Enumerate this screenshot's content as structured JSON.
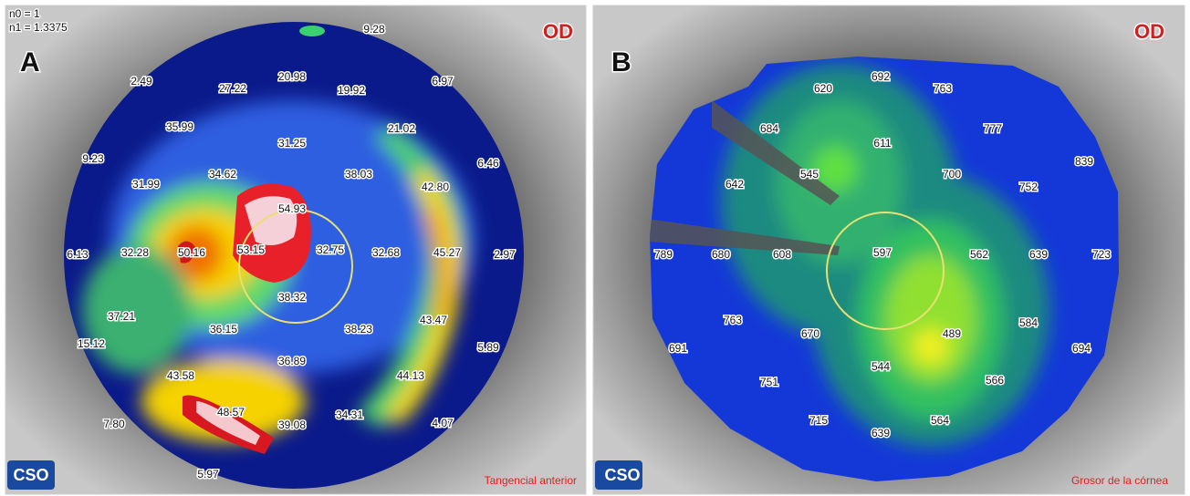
{
  "panels": [
    {
      "label": "A",
      "eye": "OD",
      "header": [
        "n0 = 1",
        "n1 = 1.3375"
      ],
      "logo": "CSO",
      "map_name": "Tangencial anterior",
      "values": [
        "9.28",
        "20.98",
        "27.22",
        "19.92",
        "2.49",
        "6.97",
        "35.99",
        "21.02",
        "31.25",
        "9.23",
        "34.62",
        "38.03",
        "6.46",
        "31.99",
        "42.80",
        "54.93",
        "6.13",
        "32.28",
        "50.16",
        "53.15",
        "32.75",
        "32.68",
        "45.27",
        "2.97",
        "38.32",
        "37.21",
        "36.15",
        "38.23",
        "43.47",
        "15.12",
        "5.89",
        "36.89",
        "43.58",
        "44.13",
        "48.57",
        "39.08",
        "34.31",
        "7.80",
        "4.07",
        "5.97"
      ]
    },
    {
      "label": "B",
      "eye": "OD",
      "logo": "CSO",
      "map_name": "Grosor de la córnea",
      "values": [
        "692",
        "763",
        "620",
        "777",
        "684",
        "611",
        "839",
        "545",
        "700",
        "642",
        "752",
        "789",
        "680",
        "608",
        "597",
        "562",
        "639",
        "723",
        "763",
        "670",
        "584",
        "691",
        "489",
        "694",
        "544",
        "566",
        "751",
        "715",
        "564",
        "639"
      ]
    }
  ]
}
